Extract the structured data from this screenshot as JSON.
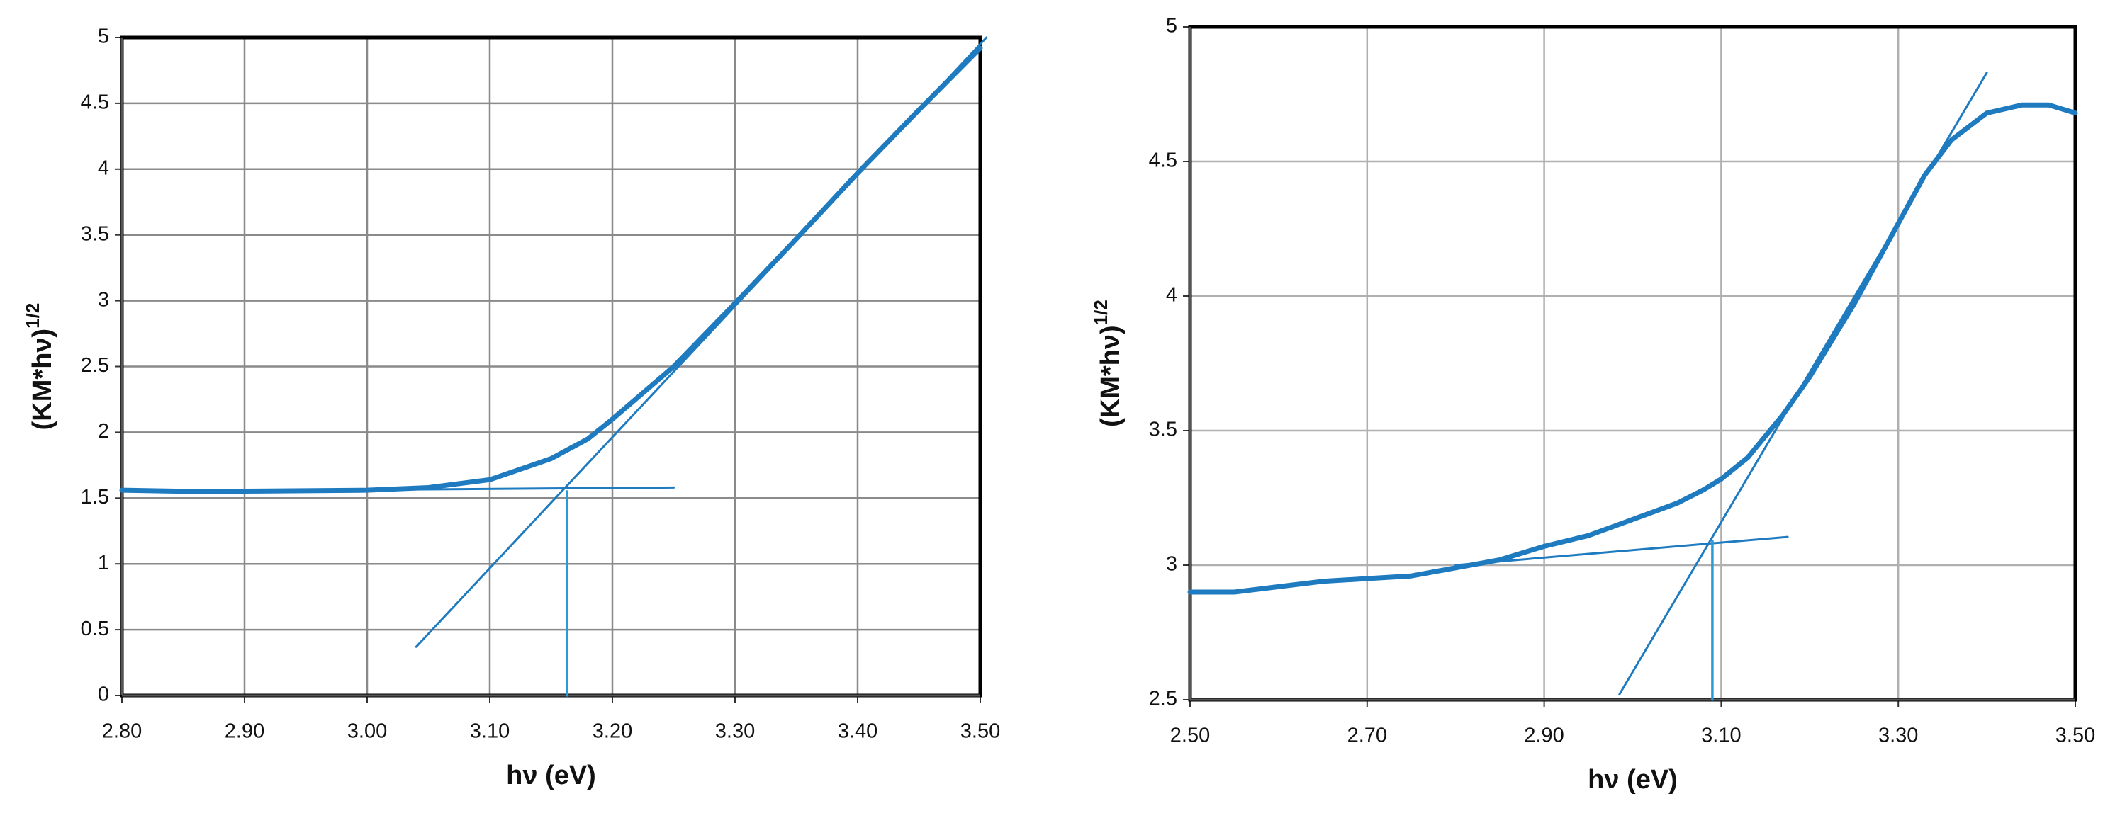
{
  "chart_data": [
    {
      "type": "line",
      "xlabel": "hν (eV)",
      "ylabel": "(KM*hν)",
      "ylabel_superscript": "1/2",
      "xlim": [
        2.8,
        3.5
      ],
      "xticks": [
        {
          "value": 2.8,
          "label": "2.80"
        },
        {
          "value": 2.9,
          "label": "2.90"
        },
        {
          "value": 3.0,
          "label": "3.00"
        },
        {
          "value": 3.1,
          "label": "3.10"
        },
        {
          "value": 3.2,
          "label": "3.20"
        },
        {
          "value": 3.3,
          "label": "3.30"
        },
        {
          "value": 3.4,
          "label": "3.40"
        },
        {
          "value": 3.5,
          "label": "3.50"
        }
      ],
      "ylim": [
        0,
        5
      ],
      "yticks": [
        0,
        0.5,
        1,
        1.5,
        2,
        2.5,
        3,
        3.5,
        4,
        4.5,
        5
      ],
      "grid": true,
      "grid_color": "#8a8a8a",
      "series": [
        {
          "color": "#1f7bc0",
          "line_width": 7,
          "x": [
            2.8,
            2.86,
            3.0,
            3.05,
            3.1,
            3.15,
            3.18,
            3.2,
            3.25,
            3.3,
            3.35,
            3.4,
            3.45,
            3.5
          ],
          "values": [
            1.56,
            1.55,
            1.56,
            1.58,
            1.64,
            1.8,
            1.95,
            2.1,
            2.5,
            2.98,
            3.47,
            3.97,
            4.45,
            4.92
          ]
        },
        {
          "color": "#1f7bc0",
          "line_width": 3,
          "x": [
            3.04,
            3.505
          ],
          "values": [
            0.37,
            5.0
          ]
        },
        {
          "color": "#1f7bc0",
          "line_width": 3,
          "x": [
            2.8,
            3.25
          ],
          "values": [
            1.55,
            1.58
          ]
        },
        {
          "color": "#2a9ad8",
          "line_width": 3.5,
          "x": [
            3.163,
            3.163
          ],
          "values": [
            0,
            1.55
          ]
        }
      ]
    },
    {
      "type": "line",
      "xlabel": "hν (eV)",
      "ylabel": "(KM*hν)",
      "ylabel_superscript": "1/2",
      "xlim": [
        2.5,
        3.5
      ],
      "xticks": [
        {
          "value": 2.5,
          "label": "2.50"
        },
        {
          "value": 2.7,
          "label": "2.70"
        },
        {
          "value": 2.9,
          "label": "2.90"
        },
        {
          "value": 3.1,
          "label": "3.10"
        },
        {
          "value": 3.3,
          "label": "3.30"
        },
        {
          "value": 3.5,
          "label": "3.50"
        }
      ],
      "ylim": [
        2.5,
        5
      ],
      "yticks": [
        2.5,
        3,
        3.5,
        4,
        4.5,
        5
      ],
      "grid": true,
      "grid_color": "#b0b0b0",
      "series": [
        {
          "color": "#1f7bc0",
          "line_width": 7,
          "x": [
            2.5,
            2.55,
            2.6,
            2.65,
            2.7,
            2.75,
            2.8,
            2.85,
            2.9,
            2.95,
            3.0,
            3.05,
            3.08,
            3.1,
            3.13,
            3.17,
            3.2,
            3.25,
            3.3,
            3.33,
            3.36,
            3.4,
            3.44,
            3.47,
            3.5
          ],
          "values": [
            2.9,
            2.9,
            2.92,
            2.94,
            2.95,
            2.96,
            2.99,
            3.02,
            3.07,
            3.11,
            3.17,
            3.23,
            3.28,
            3.32,
            3.4,
            3.56,
            3.7,
            3.97,
            4.27,
            4.45,
            4.58,
            4.68,
            4.71,
            4.71,
            4.68
          ]
        },
        {
          "color": "#1f7bc0",
          "line_width": 3,
          "x": [
            2.985,
            3.4
          ],
          "values": [
            2.52,
            4.83
          ]
        },
        {
          "color": "#1f7bc0",
          "line_width": 3,
          "x": [
            2.8,
            3.175
          ],
          "values": [
            3.0,
            3.105
          ]
        },
        {
          "color": "#2a9ad8",
          "line_width": 3.5,
          "x": [
            3.09,
            3.09
          ],
          "values": [
            2.5,
            3.09
          ]
        }
      ]
    }
  ]
}
